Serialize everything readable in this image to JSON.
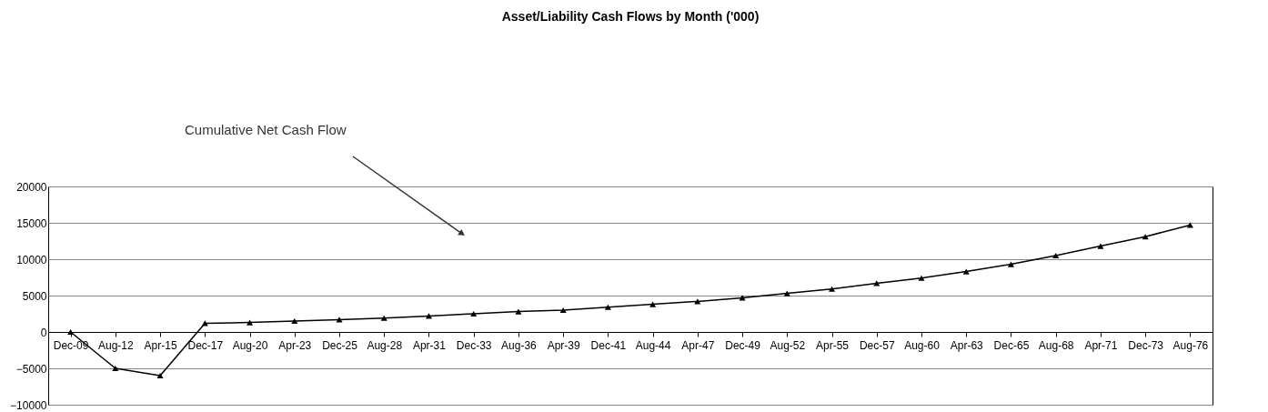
{
  "chart_data": {
    "type": "line",
    "title": "Asset/Liability Cash Flows by Month ('000)",
    "categories": [
      "Dec-09",
      "Aug-12",
      "Apr-15",
      "Dec-17",
      "Aug-20",
      "Apr-23",
      "Dec-25",
      "Aug-28",
      "Apr-31",
      "Dec-33",
      "Aug-36",
      "Apr-39",
      "Dec-41",
      "Aug-44",
      "Apr-47",
      "Dec-49",
      "Aug-52",
      "Apr-55",
      "Dec-57",
      "Aug-60",
      "Apr-63",
      "Dec-65",
      "Aug-68",
      "Apr-71",
      "Dec-73",
      "Aug-76"
    ],
    "series": [
      {
        "color": "#000000",
        "values": [
          0,
          -5000,
          -6000,
          1200,
          1300,
          1500,
          1700,
          1900,
          2200,
          2500,
          2800,
          3000,
          3400,
          3800,
          4200,
          4700,
          5300,
          5900,
          6700,
          7400,
          8300,
          9300,
          10500,
          11800,
          13100,
          14700
        ]
      }
    ],
    "annotations": [
      "Cumulative Net Cash Flow"
    ],
    "ylim": [
      -10000,
      20000
    ],
    "yticks": [
      -10000,
      -5000,
      0,
      5000,
      10000,
      15000,
      20000
    ],
    "grid": "y",
    "marker": "triangle",
    "line_style": "solid"
  }
}
